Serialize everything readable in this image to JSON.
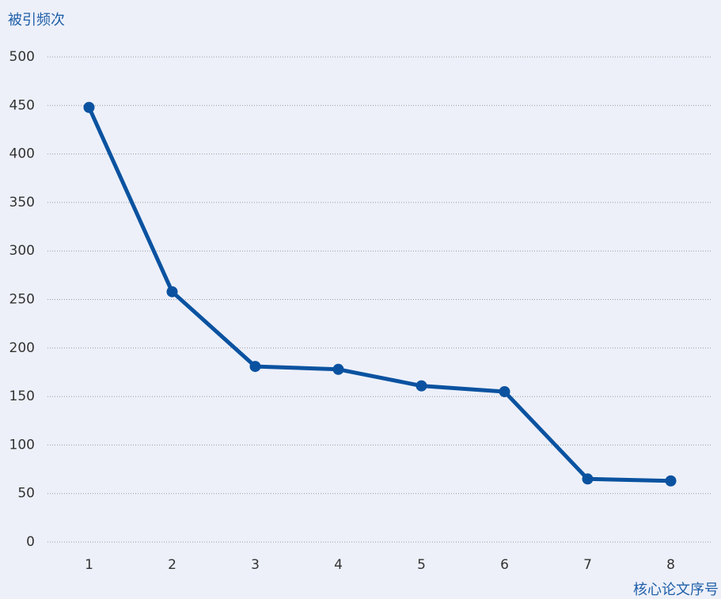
{
  "chart_data": {
    "type": "line",
    "y_label": "被引频次",
    "x_label": "核心论文序号",
    "categories": [
      "1",
      "2",
      "3",
      "4",
      "5",
      "6",
      "7",
      "8"
    ],
    "series": [
      {
        "name": "被引频次",
        "color": "#0a52a0",
        "values": [
          448,
          258,
          181,
          178,
          161,
          155,
          65,
          63
        ]
      }
    ],
    "ylim": [
      0,
      500
    ],
    "yticks": [
      0,
      50,
      100,
      150,
      200,
      250,
      300,
      350,
      400,
      450,
      500
    ],
    "grid": true,
    "legend": false
  }
}
